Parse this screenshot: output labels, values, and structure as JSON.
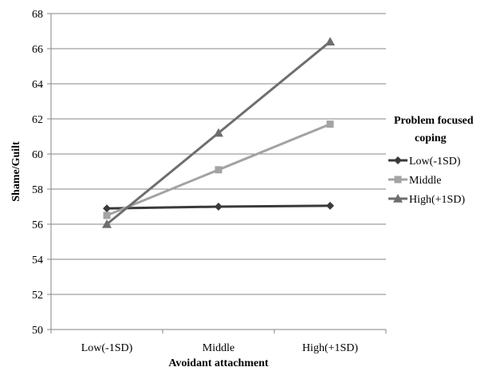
{
  "chart_data": {
    "type": "line",
    "categories": [
      "Low(-1SD)",
      "Middle",
      "High(+1SD)"
    ],
    "xlabel": "Avoidant attachment",
    "ylabel": "Shame/Guilt",
    "ylim": [
      50,
      68
    ],
    "yticks": [
      50,
      52,
      54,
      56,
      58,
      60,
      62,
      64,
      66,
      68
    ],
    "grid": true,
    "legend": {
      "title_line1": "Problem focused",
      "title_line2": "coping",
      "placement": "right"
    },
    "series": [
      {
        "name": "Low(-1SD)",
        "values": [
          56.9,
          57.0,
          57.05
        ],
        "color": "#3a3a3a",
        "marker": "diamond",
        "icon": "diamond-marker-icon"
      },
      {
        "name": "Middle",
        "values": [
          56.5,
          59.1,
          61.7
        ],
        "color": "#a3a3a3",
        "marker": "square",
        "icon": "square-marker-icon"
      },
      {
        "name": "High(+1SD)",
        "values": [
          56.0,
          61.2,
          66.4
        ],
        "color": "#6e6e6e",
        "marker": "triangle",
        "icon": "triangle-marker-icon"
      }
    ]
  }
}
